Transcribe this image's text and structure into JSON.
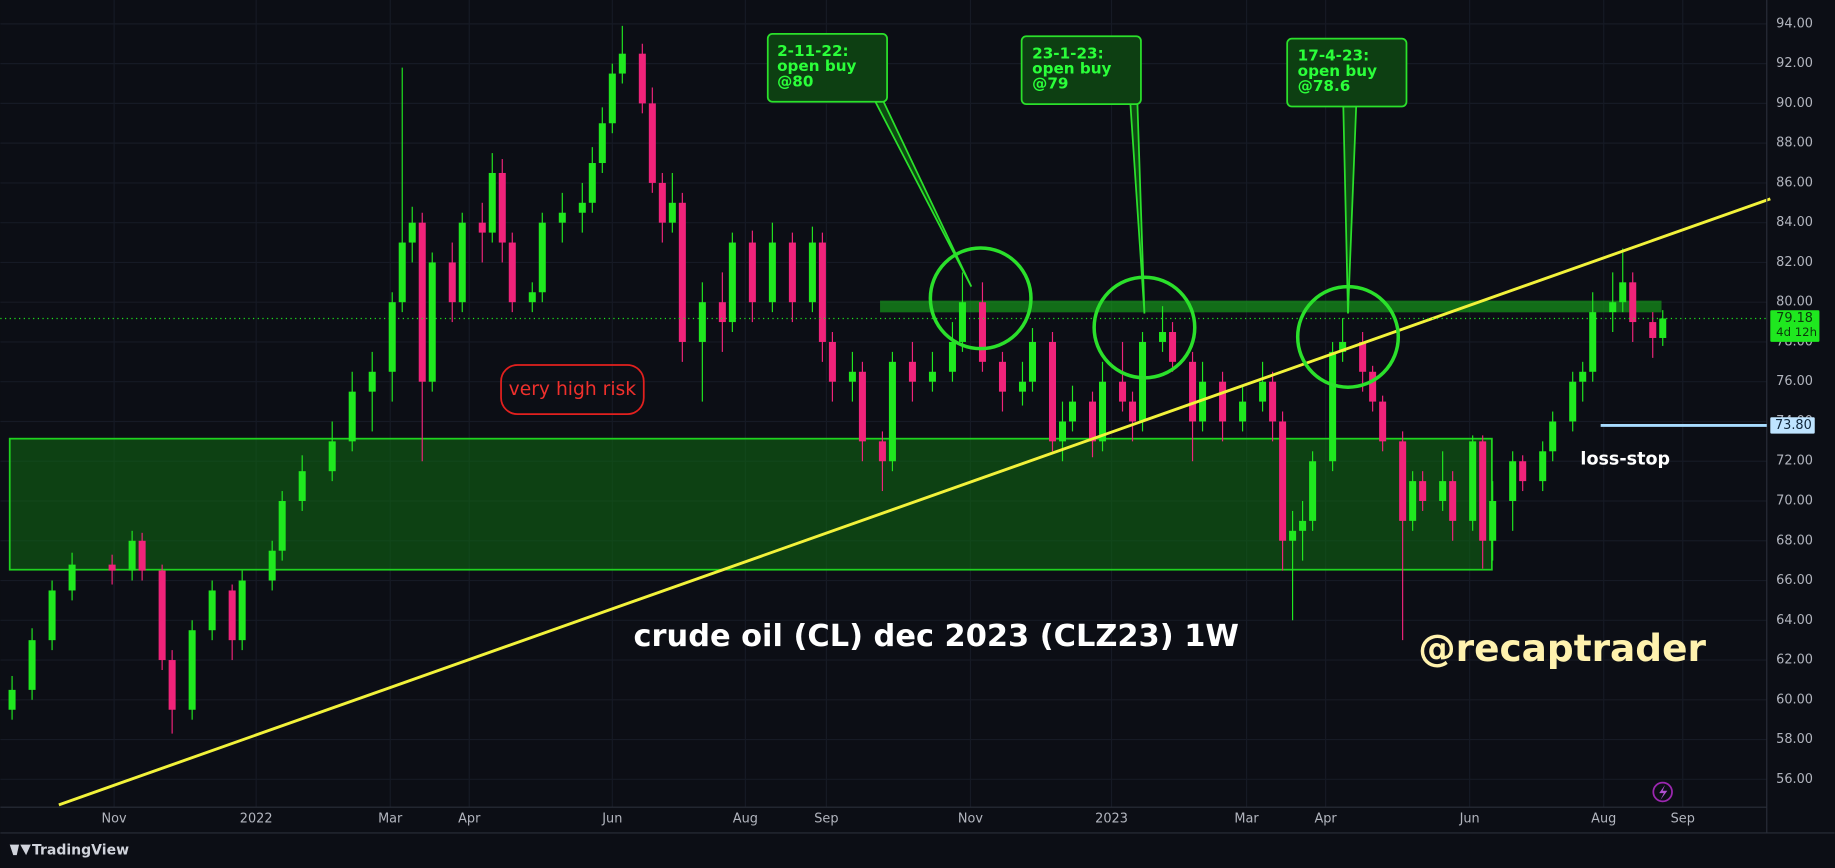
{
  "chart_data": {
    "type": "candlestick",
    "title": "crude oil (CL) dec 2023 (CLZ23) 1W",
    "x": [
      0,
      2,
      4,
      6,
      10,
      12,
      13,
      15,
      16,
      18,
      20,
      22,
      23,
      26,
      27,
      29,
      32,
      34,
      36,
      38,
      39,
      40,
      41,
      42,
      44,
      45,
      47,
      48,
      49,
      50,
      52,
      53,
      55,
      57,
      58,
      59,
      60,
      61,
      63,
      64,
      65,
      66,
      67,
      69,
      71,
      72,
      74,
      76,
      78,
      80,
      81,
      82,
      84,
      85,
      87,
      88,
      90,
      92,
      94,
      95,
      97,
      99,
      101,
      102,
      104,
      105,
      106,
      108,
      109,
      111,
      112,
      113,
      115,
      116,
      118,
      119,
      121,
      123,
      125,
      126,
      127,
      128,
      129,
      130,
      132,
      133,
      135,
      136,
      137,
      139,
      140,
      141,
      143,
      144,
      146,
      147,
      148,
      150,
      151,
      153,
      154,
      156,
      157,
      158,
      160,
      161,
      162,
      164,
      165
    ],
    "open": [
      59.5,
      60.5,
      63,
      65.5,
      66.8,
      66.5,
      68,
      66.5,
      62,
      59.5,
      63.5,
      65.5,
      63,
      66,
      67.5,
      70,
      71.5,
      73,
      75.5,
      76.5,
      80,
      83,
      84,
      76,
      82,
      80,
      84,
      83.5,
      86.5,
      83,
      80,
      80.5,
      84,
      84.5,
      85,
      87,
      89,
      91.5,
      92.5,
      90,
      86,
      84,
      85,
      78,
      80,
      79,
      83,
      80,
      83,
      80,
      83,
      78,
      76,
      76.5,
      73,
      72,
      77,
      76,
      76.5,
      78,
      80,
      77,
      75.5,
      76,
      78,
      73,
      74,
      75,
      73,
      76,
      75,
      74,
      78,
      78.5,
      77,
      74,
      76,
      74,
      75,
      76,
      74,
      68,
      68.5,
      69,
      72,
      77.5,
      78,
      76.5,
      75,
      73,
      69,
      71,
      70,
      71,
      69,
      73,
      68,
      70,
      72,
      71,
      72.5,
      74,
      76,
      76.5,
      79.5,
      80,
      81,
      79,
      78.2
    ],
    "high": [
      61.2,
      63.6,
      66,
      67.4,
      67.3,
      68.5,
      68.4,
      66.8,
      62.5,
      64,
      66,
      65.8,
      66.5,
      68,
      70.5,
      72.3,
      74,
      76.5,
      77.5,
      80.5,
      91.8,
      84.8,
      84.5,
      82.5,
      83,
      84.5,
      85,
      87.5,
      87.2,
      83.5,
      81,
      84.5,
      85.5,
      86,
      87.8,
      89.8,
      92,
      93.9,
      93,
      90.8,
      86.5,
      86.5,
      85.5,
      81,
      81.5,
      83.5,
      83.6,
      84,
      83.5,
      83.8,
      83.5,
      78.5,
      77.5,
      77,
      73.5,
      77.5,
      78,
      77.5,
      79,
      81.5,
      81,
      77.5,
      77,
      78.7,
      78.5,
      75,
      75.8,
      75.5,
      77,
      78,
      75.5,
      78.5,
      79.8,
      79,
      77.5,
      77,
      76.5,
      75.8,
      77,
      76.5,
      74.5,
      69.5,
      70,
      72.5,
      78,
      79.2,
      78.5,
      76.8,
      75.3,
      73.5,
      71.5,
      71.5,
      72.5,
      71.5,
      73.3,
      73.3,
      71,
      72.5,
      72.3,
      73,
      74.5,
      76.5,
      77,
      80.5,
      81.5,
      82.7,
      81.5,
      79.5,
      79.6
    ],
    "low": [
      59,
      60,
      62.5,
      65,
      65.8,
      66,
      66,
      61.5,
      58.3,
      59,
      63,
      62,
      62.5,
      65.5,
      67,
      69.5,
      71,
      72.5,
      73.5,
      75,
      79.5,
      82,
      72,
      75.5,
      79,
      79.5,
      82,
      83,
      82,
      79.5,
      79.5,
      80,
      83,
      83.5,
      84.5,
      86.5,
      88.5,
      91,
      89.5,
      85.5,
      83,
      83.5,
      77,
      75,
      77.5,
      78.5,
      79,
      79.5,
      79,
      79.5,
      77,
      75,
      75,
      72,
      70.5,
      71.5,
      75,
      75.5,
      76,
      77.5,
      76.5,
      74.5,
      74.8,
      75.5,
      72.5,
      72,
      73.5,
      72.2,
      72.5,
      74.5,
      73,
      73.5,
      77.5,
      76.5,
      72,
      73.5,
      73,
      73.5,
      74.5,
      73,
      66.5,
      64,
      67,
      68.5,
      71.5,
      77,
      75.5,
      74.5,
      72.5,
      63,
      68.5,
      69.5,
      69.5,
      68,
      68.5,
      66.6,
      67,
      68.5,
      70.5,
      70.5,
      72,
      73.5,
      75,
      76,
      78.5,
      79.5,
      78,
      77.2,
      77.8
    ],
    "close": [
      60.5,
      63,
      65.5,
      66.8,
      66.5,
      68,
      66.5,
      62,
      59.5,
      63.5,
      65.5,
      63,
      66,
      67.5,
      70,
      71.5,
      73,
      75.5,
      76.5,
      80,
      83,
      84,
      76,
      82,
      80,
      84,
      83.5,
      86.5,
      83,
      80,
      80.5,
      84,
      84.5,
      85,
      87,
      89,
      91.5,
      92.5,
      90,
      86,
      84,
      85,
      78,
      80,
      79,
      83,
      80,
      83,
      80,
      83,
      78,
      76,
      76.5,
      73,
      72,
      77,
      76,
      76.5,
      78,
      80,
      77,
      75.5,
      76,
      78,
      73,
      74,
      75,
      73,
      76,
      75,
      74,
      78,
      78.5,
      77,
      74,
      76,
      74,
      75,
      76,
      74,
      68,
      68.5,
      69,
      72,
      77.5,
      78,
      76.5,
      75,
      73,
      69,
      71,
      70,
      71,
      69,
      73,
      68,
      70,
      72,
      71,
      72.5,
      74,
      76,
      76.5,
      79.5,
      80,
      81,
      79,
      78.2,
      79.18
    ],
    "up_color": "#1fe81f",
    "down_color": "#f0237a",
    "grid": true,
    "xlim": [
      -1.17,
      175.4
    ],
    "xticks": [
      {
        "value": 10.2,
        "label": "Nov"
      },
      {
        "value": 24.4,
        "label": "2022"
      },
      {
        "value": 37.8,
        "label": "Mar"
      },
      {
        "value": 45.7,
        "label": "Apr"
      },
      {
        "value": 60,
        "label": "Jun"
      },
      {
        "value": 73.3,
        "label": "Aug"
      },
      {
        "value": 81.4,
        "label": "Sep"
      },
      {
        "value": 95.8,
        "label": "Nov"
      },
      {
        "value": 109.9,
        "label": "2023"
      },
      {
        "value": 123.4,
        "label": "Mar"
      },
      {
        "value": 131.3,
        "label": "Apr"
      },
      {
        "value": 145.7,
        "label": "Jun"
      },
      {
        "value": 159.1,
        "label": "Aug"
      },
      {
        "value": 167,
        "label": "Sep"
      }
    ],
    "ylim": [
      54.6,
      95.2
    ],
    "yticks": [
      {
        "value": 56,
        "label": "56.00"
      },
      {
        "value": 58,
        "label": "58.00"
      },
      {
        "value": 60,
        "label": "60.00"
      },
      {
        "value": 62,
        "label": "62.00"
      },
      {
        "value": 64,
        "label": "64.00"
      },
      {
        "value": 66,
        "label": "66.00"
      },
      {
        "value": 68,
        "label": "68.00"
      },
      {
        "value": 70,
        "label": "70.00"
      },
      {
        "value": 72,
        "label": "72.00"
      },
      {
        "value": 74,
        "label": "74.00"
      },
      {
        "value": 76,
        "label": "76.00"
      },
      {
        "value": 78,
        "label": "78.00"
      },
      {
        "value": 80,
        "label": "80.00"
      },
      {
        "value": 82,
        "label": "82.00"
      },
      {
        "value": 84,
        "label": "84.00"
      },
      {
        "value": 86,
        "label": "86.00"
      },
      {
        "value": 88,
        "label": "88.00"
      },
      {
        "value": 90,
        "label": "90.00"
      },
      {
        "value": 92,
        "label": "92.00"
      },
      {
        "value": 94,
        "label": "94.00"
      }
    ],
    "last_price": {
      "value": 79.18,
      "label": "79.18",
      "countdown": "4d 12h"
    },
    "stop": {
      "value": 73.8,
      "label": "73.80",
      "name": "loss-stop"
    },
    "annotations": {
      "callouts": [
        {
          "lines": [
            "2-11-22:",
            "open buy",
            "@80"
          ]
        },
        {
          "lines": [
            "23-1-23:",
            "open buy",
            "@79"
          ]
        },
        {
          "lines": [
            "17-4-23:",
            "open buy",
            "@78.6"
          ]
        }
      ],
      "risk": "very high risk",
      "watermark": "@recaptrader"
    }
  },
  "footer": "TradingView"
}
